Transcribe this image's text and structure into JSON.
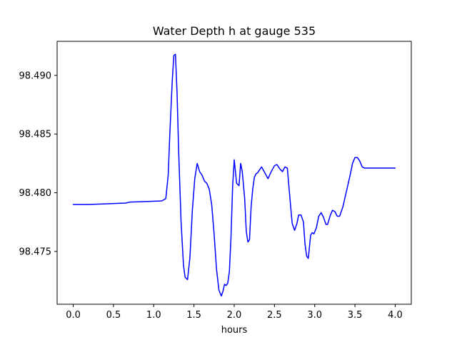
{
  "chart_data": {
    "type": "line",
    "title": "Water Depth h at gauge 535",
    "xlabel": "hours",
    "ylabel": "",
    "xlim": [
      -0.2,
      4.2
    ],
    "ylim": [
      98.4705,
      98.4929
    ],
    "xticks": [
      0.0,
      0.5,
      1.0,
      1.5,
      2.0,
      2.5,
      3.0,
      3.5,
      4.0
    ],
    "xtick_labels": [
      "0.0",
      "0.5",
      "1.0",
      "1.5",
      "2.0",
      "2.5",
      "3.0",
      "3.5",
      "4.0"
    ],
    "yticks": [
      98.475,
      98.48,
      98.485,
      98.49
    ],
    "ytick_labels": [
      "98.475",
      "98.480",
      "98.485",
      "98.490"
    ],
    "grid": false,
    "series": [
      {
        "color": "#0000ff",
        "x": [
          0.0,
          0.2,
          0.4,
          0.65,
          0.7,
          0.9,
          1.1,
          1.15,
          1.18,
          1.2,
          1.23,
          1.25,
          1.27,
          1.29,
          1.31,
          1.34,
          1.37,
          1.39,
          1.42,
          1.45,
          1.48,
          1.51,
          1.54,
          1.57,
          1.6,
          1.63,
          1.66,
          1.69,
          1.72,
          1.75,
          1.78,
          1.81,
          1.84,
          1.86,
          1.88,
          1.9,
          1.92,
          1.94,
          1.96,
          1.98,
          2.0,
          2.03,
          2.06,
          2.08,
          2.1,
          2.13,
          2.15,
          2.17,
          2.19,
          2.21,
          2.23,
          2.25,
          2.27,
          2.29,
          2.31,
          2.34,
          2.38,
          2.42,
          2.46,
          2.5,
          2.53,
          2.57,
          2.6,
          2.63,
          2.66,
          2.69,
          2.72,
          2.75,
          2.78,
          2.8,
          2.83,
          2.86,
          2.88,
          2.9,
          2.92,
          2.95,
          2.97,
          2.99,
          3.02,
          3.05,
          3.08,
          3.11,
          3.14,
          3.16,
          3.19,
          3.22,
          3.25,
          3.28,
          3.31,
          3.35,
          3.38,
          3.41,
          3.44,
          3.47,
          3.5,
          3.53,
          3.56,
          3.59,
          3.62,
          3.66,
          3.7,
          3.74,
          3.78,
          3.82,
          3.86,
          3.9,
          3.94,
          3.97,
          4.0
        ],
        "y": [
          98.479,
          98.479,
          98.47905,
          98.47912,
          98.4792,
          98.47925,
          98.4793,
          98.4795,
          98.4815,
          98.485,
          98.4895,
          98.4917,
          98.4918,
          98.4885,
          98.4835,
          98.4775,
          98.4738,
          98.4728,
          98.4726,
          98.4745,
          98.4785,
          98.4812,
          98.4825,
          98.4818,
          98.4815,
          98.481,
          98.4808,
          98.4803,
          98.479,
          98.4765,
          98.4735,
          98.4717,
          98.4712,
          98.4716,
          98.4722,
          98.4721,
          98.4723,
          98.4733,
          98.4762,
          98.4805,
          98.4828,
          98.4808,
          98.4806,
          98.4825,
          98.4818,
          98.4795,
          98.4767,
          98.4758,
          98.476,
          98.4788,
          98.4803,
          98.4813,
          98.4816,
          98.4817,
          98.4819,
          98.4822,
          98.4817,
          98.4812,
          98.4818,
          98.4823,
          98.4824,
          98.482,
          98.4818,
          98.4822,
          98.4821,
          98.4797,
          98.4774,
          98.4768,
          98.4774,
          98.4781,
          98.4781,
          98.4775,
          98.4756,
          98.4746,
          98.4744,
          98.4764,
          98.4766,
          98.4765,
          98.477,
          98.478,
          98.4783,
          98.4779,
          98.4773,
          98.4773,
          98.478,
          98.4785,
          98.4784,
          98.478,
          98.478,
          98.4788,
          98.4797,
          98.4806,
          98.4815,
          98.4825,
          98.483,
          98.483,
          98.4827,
          98.4822,
          98.4821,
          98.4821,
          98.4821,
          98.4821,
          98.4821,
          98.4821,
          98.4821,
          98.4821,
          98.4821,
          98.4821,
          98.4821
        ]
      }
    ]
  }
}
